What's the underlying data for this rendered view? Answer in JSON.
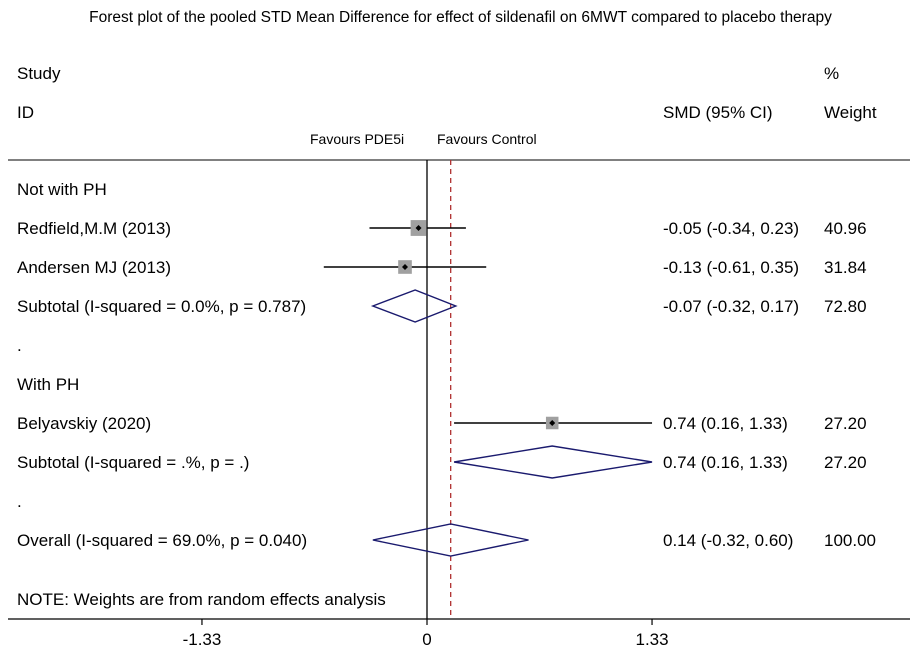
{
  "chart_data": {
    "type": "forest",
    "title": "Forest plot of the pooled STD Mean Difference for effect of sildenafil on 6MWT compared to placebo therapy",
    "header": {
      "study_line1": "Study",
      "study_line2": "ID",
      "effect": "SMD (95% CI)",
      "weight_line1": "%",
      "weight_line2": "Weight"
    },
    "favours_left": "Favours PDE5i",
    "favours_right": "Favours Control",
    "x_ticks": [
      {
        "value": -1.33,
        "label": "-1.33"
      },
      {
        "value": 0,
        "label": "0"
      },
      {
        "value": 1.33,
        "label": "1.33"
      }
    ],
    "xlim": [
      -2.55,
      2.85
    ],
    "null_line": 0,
    "overall_line": 0.14,
    "rows": [
      {
        "kind": "group",
        "label": "Not with PH"
      },
      {
        "kind": "study",
        "label": "Redfield,M.M (2013)",
        "est": -0.05,
        "lo": -0.34,
        "hi": 0.23,
        "ci_text": "-0.05 (-0.34, 0.23)",
        "weight": 40.96,
        "weight_text": "40.96"
      },
      {
        "kind": "study",
        "label": "Andersen MJ (2013)",
        "est": -0.13,
        "lo": -0.61,
        "hi": 0.35,
        "ci_text": "-0.13 (-0.61, 0.35)",
        "weight": 31.84,
        "weight_text": "31.84"
      },
      {
        "kind": "subtotal",
        "label": "Subtotal  (I-squared = 0.0%, p = 0.787)",
        "est": -0.07,
        "lo": -0.32,
        "hi": 0.17,
        "ci_text": "-0.07 (-0.32, 0.17)",
        "weight_text": "72.80"
      },
      {
        "kind": "spacer",
        "label": "."
      },
      {
        "kind": "group",
        "label": "With PH"
      },
      {
        "kind": "study",
        "label": "Belyavskiy (2020)",
        "est": 0.74,
        "lo": 0.16,
        "hi": 1.33,
        "ci_text": "0.74 (0.16, 1.33)",
        "weight": 27.2,
        "weight_text": "27.20"
      },
      {
        "kind": "subtotal",
        "label": "Subtotal  (I-squared = .%, p = .)",
        "est": 0.74,
        "lo": 0.16,
        "hi": 1.33,
        "ci_text": "0.74 (0.16, 1.33)",
        "weight_text": "27.20"
      },
      {
        "kind": "spacer",
        "label": "."
      },
      {
        "kind": "overall",
        "label": "Overall  (I-squared = 69.0%, p = 0.040)",
        "est": 0.14,
        "lo": -0.32,
        "hi": 0.6,
        "ci_text": "0.14 (-0.32, 0.60)",
        "weight_text": "100.00"
      }
    ],
    "note": "NOTE: Weights are from random effects analysis",
    "colors": {
      "diamond": "#1a1a6e",
      "overall_line": "#b03030",
      "box": "#a0a0a0",
      "axis": "#000000"
    }
  }
}
